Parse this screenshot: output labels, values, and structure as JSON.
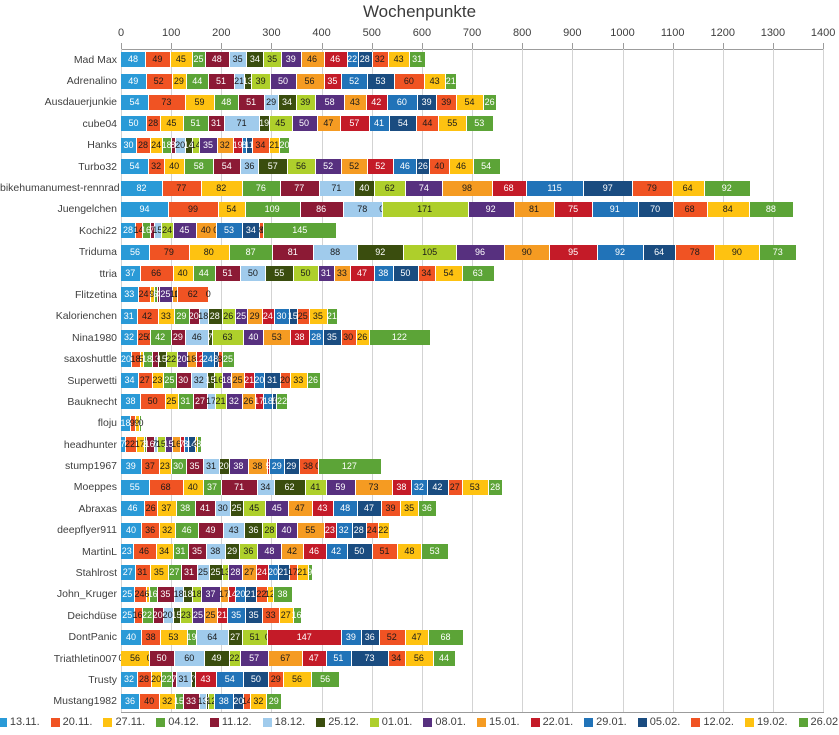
{
  "title": "Wochenpunkte",
  "chart_data": {
    "type": "bar",
    "stacked": true,
    "orientation": "horizontal",
    "title": "Wochenpunkte",
    "x_axis": {
      "min": 0,
      "max": 1400,
      "step": 100,
      "position": "top",
      "grid": true
    },
    "legend_position": "bottom",
    "series": [
      {
        "name": "13.11.",
        "color": "#2a9ad7",
        "text_color": "#ffffff"
      },
      {
        "name": "20.11.",
        "color": "#f05323",
        "text_color": "#1a1a1a"
      },
      {
        "name": "27.11.",
        "color": "#fec211",
        "text_color": "#1a1a1a"
      },
      {
        "name": "04.12.",
        "color": "#5ca437",
        "text_color": "#ffffff"
      },
      {
        "name": "11.12.",
        "color": "#8c1a35",
        "text_color": "#ffffff"
      },
      {
        "name": "18.12.",
        "color": "#a0cbec",
        "text_color": "#1a1a1a"
      },
      {
        "name": "25.12.",
        "color": "#3a4d0e",
        "text_color": "#ffffff"
      },
      {
        "name": "01.01.",
        "color": "#aecf2b",
        "text_color": "#1a1a1a"
      },
      {
        "name": "08.01.",
        "color": "#57307f",
        "text_color": "#ffffff"
      },
      {
        "name": "15.01.",
        "color": "#f59b22",
        "text_color": "#1a1a1a"
      },
      {
        "name": "22.01.",
        "color": "#c41b28",
        "text_color": "#ffffff"
      },
      {
        "name": "29.01.",
        "color": "#2173b8",
        "text_color": "#ffffff"
      },
      {
        "name": "05.02.",
        "color": "#1a4c80",
        "text_color": "#ffffff"
      },
      {
        "name": "12.02.",
        "color": "#f05323",
        "text_color": "#1a1a1a"
      },
      {
        "name": "19.02.",
        "color": "#fec211",
        "text_color": "#1a1a1a"
      },
      {
        "name": "26.02.",
        "color": "#5ca437",
        "text_color": "#ffffff"
      }
    ],
    "categories": [
      "Mad Max",
      "Adrenalino",
      "Ausdauerjunkie",
      "cube04",
      "Hanks",
      "Turbo32",
      "bikehumanumest-rennrad",
      "Juengelchen",
      "Kochi22",
      "Triduma",
      "ttria",
      "Flitzetina",
      "Kalorienchen",
      "Nina1980",
      "saxoshuttle",
      "Superwetti",
      "Bauknecht",
      "floju",
      "headhunter",
      "stump1967",
      "Moeppes",
      "Abraxas",
      "deepflyer911",
      "MartinL",
      "Stahlrost",
      "John_Kruger",
      "Deichdüse",
      "DontPanic",
      "Triathletin007",
      "Trusty",
      "Mustang1982"
    ],
    "values": [
      [
        48,
        49,
        45,
        25,
        48,
        35,
        34,
        35,
        39,
        46,
        46,
        22,
        28,
        32,
        43,
        31
      ],
      [
        49,
        52,
        29,
        44,
        51,
        21,
        13,
        39,
        50,
        56,
        35,
        52,
        53,
        60,
        43,
        21
      ],
      [
        54,
        73,
        59,
        48,
        51,
        29,
        34,
        39,
        58,
        43,
        42,
        60,
        39,
        39,
        54,
        26
      ],
      [
        50,
        28,
        45,
        51,
        31,
        71,
        19,
        45,
        50,
        47,
        57,
        41,
        54,
        44,
        55,
        53
      ],
      [
        30,
        28,
        24,
        18,
        8,
        20,
        14,
        14,
        35,
        32,
        19,
        8,
        11,
        34,
        21,
        20
      ],
      [
        54,
        32,
        40,
        58,
        54,
        36,
        57,
        56,
        52,
        52,
        52,
        46,
        26,
        40,
        46,
        54
      ],
      [
        82,
        77,
        82,
        76,
        77,
        71,
        40,
        62,
        74,
        98,
        68,
        115,
        97,
        79,
        64,
        92
      ],
      [
        94,
        99,
        54,
        109,
        86,
        78,
        0,
        171,
        92,
        81,
        75,
        91,
        70,
        68,
        84,
        88
      ],
      [
        28,
        14,
        null,
        16,
        7,
        15,
        null,
        24,
        45,
        40,
        0,
        53,
        34,
        8,
        0,
        145
      ],
      [
        56,
        79,
        80,
        87,
        81,
        88,
        92,
        105,
        96,
        90,
        95,
        92,
        64,
        78,
        90,
        73
      ],
      [
        37,
        66,
        40,
        44,
        51,
        50,
        55,
        50,
        31,
        33,
        47,
        38,
        50,
        34,
        54,
        63
      ],
      [
        33,
        24,
        9,
        6,
        4,
        null,
        null,
        null,
        25,
        11,
        0,
        null,
        null,
        62,
        0,
        null
      ],
      [
        31,
        42,
        33,
        29,
        20,
        18,
        28,
        26,
        25,
        29,
        24,
        30,
        15,
        25,
        35,
        21
      ],
      [
        32,
        25,
        0,
        42,
        29,
        46,
        7,
        63,
        40,
        53,
        38,
        28,
        35,
        30,
        26,
        122
      ],
      [
        20,
        18,
        5,
        18,
        13,
        0,
        15,
        22,
        20,
        18,
        12,
        24,
        8,
        8,
        null,
        25
      ],
      [
        34,
        27,
        23,
        25,
        30,
        32,
        15,
        16,
        18,
        25,
        21,
        20,
        31,
        20,
        33,
        26
      ],
      [
        38,
        50,
        25,
        31,
        27,
        17,
        null,
        21,
        32,
        26,
        17,
        18,
        8,
        0,
        null,
        22
      ],
      [
        18,
        9,
        9,
        4,
        0,
        null,
        null,
        null,
        null,
        null,
        null,
        null,
        null,
        null,
        null,
        null
      ],
      [
        7,
        22,
        17,
        3,
        16,
        7,
        null,
        15,
        15,
        16,
        7,
        8,
        14,
        null,
        4,
        8
      ],
      [
        39,
        37,
        23,
        30,
        35,
        31,
        20,
        null,
        38,
        38,
        5,
        29,
        29,
        38,
        0,
        127
      ],
      [
        55,
        68,
        40,
        37,
        71,
        34,
        62,
        41,
        59,
        73,
        38,
        32,
        42,
        27,
        53,
        28
      ],
      [
        46,
        26,
        37,
        38,
        41,
        30,
        25,
        45,
        45,
        47,
        43,
        48,
        47,
        39,
        35,
        36
      ],
      [
        40,
        36,
        32,
        46,
        49,
        43,
        36,
        28,
        40,
        55,
        23,
        32,
        28,
        24,
        22,
        null
      ],
      [
        23,
        46,
        34,
        31,
        35,
        38,
        29,
        36,
        48,
        42,
        46,
        42,
        50,
        51,
        48,
        53
      ],
      [
        27,
        31,
        35,
        27,
        31,
        25,
        25,
        13,
        28,
        27,
        24,
        20,
        21,
        17,
        21,
        9
      ],
      [
        25,
        24,
        6,
        16,
        35,
        18,
        18,
        18,
        37,
        17,
        14,
        20,
        21,
        22,
        12,
        38
      ],
      [
        25,
        16,
        null,
        22,
        20,
        20,
        15,
        23,
        25,
        25,
        21,
        35,
        35,
        33,
        27,
        16
      ],
      [
        40,
        38,
        53,
        19,
        null,
        64,
        27,
        51,
        0,
        null,
        147,
        39,
        36,
        52,
        47,
        68
      ],
      [
        0,
        null,
        56,
        0,
        50,
        60,
        49,
        22,
        57,
        67,
        47,
        51,
        73,
        34,
        56,
        44
      ],
      [
        32,
        28,
        20,
        22,
        7,
        31,
        7,
        0,
        null,
        null,
        43,
        54,
        50,
        29,
        56,
        56
      ],
      [
        36,
        40,
        32,
        15,
        33,
        13,
        5,
        12,
        null,
        null,
        null,
        38,
        20,
        14,
        32,
        29
      ]
    ]
  }
}
